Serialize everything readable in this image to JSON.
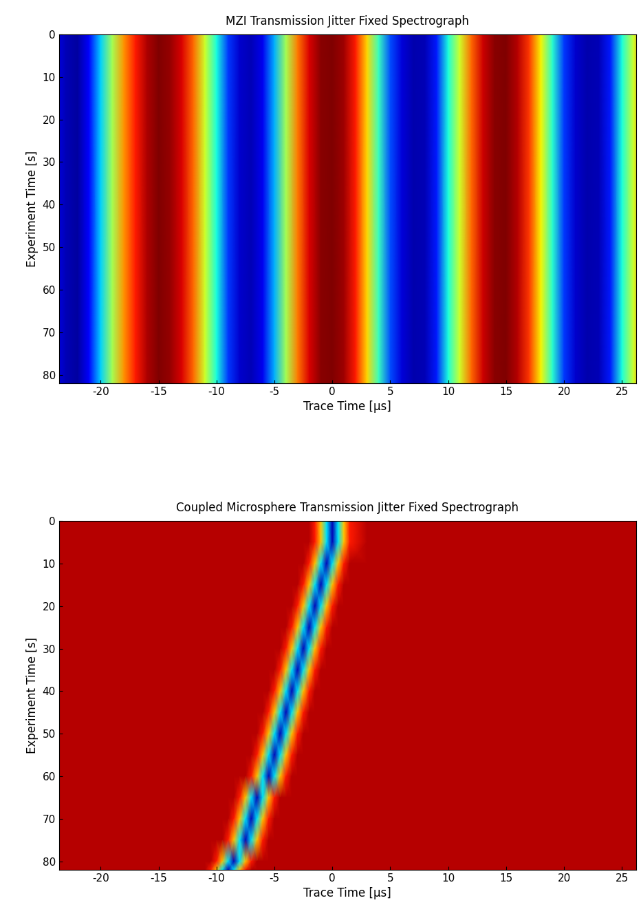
{
  "chart_data": [
    {
      "type": "heatmap",
      "title": "MZI Transmission Jitter Fixed Spectrograph",
      "x_label": "Trace Time [µs]",
      "y_label": "Experiment Time [s]",
      "xlim": [
        -23.6,
        26.2
      ],
      "ylim": [
        82,
        0
      ],
      "xticks": [
        -20,
        -15,
        -10,
        -5,
        0,
        5,
        10,
        15,
        20,
        25
      ],
      "yticks": [
        0,
        10,
        20,
        30,
        40,
        50,
        60,
        70,
        80
      ],
      "color_range": [
        0,
        1
      ],
      "x": [
        -24,
        -23,
        -22,
        -21,
        -20,
        -19,
        -18,
        -17,
        -16,
        -15,
        -14,
        -13,
        -12,
        -11,
        -10,
        -9,
        -8,
        -7,
        -6,
        -5,
        -4,
        -3,
        -2,
        -1,
        0,
        1,
        2,
        3,
        4,
        5,
        6,
        7,
        8,
        9,
        10,
        11,
        12,
        13,
        14,
        15,
        16,
        17,
        18,
        19,
        20,
        21,
        22,
        23,
        24,
        25,
        26,
        27
      ],
      "y": [
        0,
        82
      ],
      "cells": [
        [
          0.1,
          0.05,
          0.03,
          0.12,
          0.33,
          0.55,
          0.75,
          0.88,
          0.96,
          1.0,
          0.98,
          0.92,
          0.8,
          0.6,
          0.38,
          0.18,
          0.07,
          0.05,
          0.1,
          0.3,
          0.55,
          0.78,
          0.92,
          0.99,
          1.0,
          0.97,
          0.88,
          0.68,
          0.42,
          0.2,
          0.08,
          0.04,
          0.05,
          0.15,
          0.38,
          0.6,
          0.8,
          0.93,
          0.99,
          1.0,
          0.95,
          0.85,
          0.65,
          0.4,
          0.18,
          0.07,
          0.04,
          0.05,
          0.15,
          0.38,
          0.6,
          0.8
        ],
        [
          0.1,
          0.05,
          0.03,
          0.12,
          0.33,
          0.55,
          0.75,
          0.88,
          0.96,
          1.0,
          0.98,
          0.92,
          0.8,
          0.6,
          0.38,
          0.18,
          0.07,
          0.05,
          0.1,
          0.3,
          0.55,
          0.78,
          0.92,
          0.99,
          1.0,
          0.97,
          0.88,
          0.68,
          0.42,
          0.2,
          0.08,
          0.04,
          0.05,
          0.15,
          0.38,
          0.6,
          0.8,
          0.93,
          0.99,
          1.0,
          0.95,
          0.85,
          0.65,
          0.4,
          0.18,
          0.07,
          0.04,
          0.05,
          0.15,
          0.38,
          0.6,
          0.8
        ]
      ]
    },
    {
      "type": "heatmap",
      "title": "Coupled Microsphere Transmission Jitter Fixed Spectrograph",
      "x_label": "Trace Time [µs]",
      "y_label": "Experiment Time [s]",
      "xlim": [
        -23.6,
        26.2
      ],
      "ylim": [
        82,
        0
      ],
      "xticks": [
        -20,
        -15,
        -10,
        -5,
        0,
        5,
        10,
        15,
        20,
        25
      ],
      "yticks": [
        0,
        10,
        20,
        30,
        40,
        50,
        60,
        70,
        80
      ],
      "color_range": [
        0,
        1
      ],
      "x": [
        -24,
        -12,
        -11,
        -10.5,
        -10,
        -9.5,
        -9,
        -8.5,
        -8,
        -7.5,
        -7,
        -6.5,
        -6,
        -5.5,
        -5,
        -4.5,
        -4,
        -3.5,
        -3,
        -2.5,
        -2,
        -1.5,
        -1,
        -0.5,
        0,
        0.5,
        1,
        1.5,
        3,
        27
      ],
      "y": [
        0,
        5,
        10,
        15,
        20,
        25,
        30,
        35,
        40,
        45,
        50,
        55,
        60,
        65,
        70,
        75,
        80,
        82
      ],
      "cells": [
        [
          0.95,
          0.95,
          0.95,
          0.95,
          0.95,
          0.95,
          0.95,
          0.95,
          0.95,
          0.95,
          0.95,
          0.95,
          0.95,
          0.95,
          0.95,
          0.95,
          0.95,
          0.95,
          0.95,
          0.95,
          0.95,
          0.88,
          0.7,
          0.35,
          0.05,
          0.35,
          0.7,
          0.88,
          0.95,
          0.95
        ],
        [
          0.95,
          0.95,
          0.95,
          0.95,
          0.95,
          0.95,
          0.95,
          0.95,
          0.95,
          0.95,
          0.95,
          0.95,
          0.95,
          0.95,
          0.95,
          0.95,
          0.95,
          0.95,
          0.95,
          0.95,
          0.95,
          0.88,
          0.7,
          0.35,
          0.05,
          0.35,
          0.7,
          0.88,
          0.95,
          0.95
        ],
        [
          0.95,
          0.95,
          0.95,
          0.95,
          0.95,
          0.95,
          0.95,
          0.95,
          0.95,
          0.95,
          0.95,
          0.95,
          0.95,
          0.95,
          0.95,
          0.95,
          0.95,
          0.95,
          0.95,
          0.95,
          0.88,
          0.7,
          0.35,
          0.05,
          0.35,
          0.7,
          0.88,
          0.95,
          0.95,
          0.95
        ],
        [
          0.95,
          0.95,
          0.95,
          0.95,
          0.95,
          0.95,
          0.95,
          0.95,
          0.95,
          0.95,
          0.95,
          0.95,
          0.95,
          0.95,
          0.95,
          0.95,
          0.95,
          0.95,
          0.95,
          0.88,
          0.7,
          0.35,
          0.05,
          0.35,
          0.7,
          0.88,
          0.95,
          0.95,
          0.95,
          0.95
        ],
        [
          0.95,
          0.95,
          0.95,
          0.95,
          0.95,
          0.95,
          0.95,
          0.95,
          0.95,
          0.95,
          0.95,
          0.95,
          0.95,
          0.95,
          0.95,
          0.95,
          0.95,
          0.95,
          0.88,
          0.7,
          0.35,
          0.05,
          0.35,
          0.7,
          0.88,
          0.95,
          0.95,
          0.95,
          0.95,
          0.95
        ],
        [
          0.95,
          0.95,
          0.95,
          0.95,
          0.95,
          0.95,
          0.95,
          0.95,
          0.95,
          0.95,
          0.95,
          0.95,
          0.95,
          0.95,
          0.95,
          0.95,
          0.95,
          0.88,
          0.7,
          0.35,
          0.05,
          0.35,
          0.7,
          0.88,
          0.95,
          0.95,
          0.95,
          0.95,
          0.95,
          0.95
        ],
        [
          0.95,
          0.95,
          0.95,
          0.95,
          0.95,
          0.95,
          0.95,
          0.95,
          0.95,
          0.95,
          0.95,
          0.95,
          0.95,
          0.95,
          0.95,
          0.95,
          0.88,
          0.7,
          0.35,
          0.05,
          0.35,
          0.7,
          0.88,
          0.95,
          0.95,
          0.95,
          0.95,
          0.95,
          0.95,
          0.95
        ],
        [
          0.95,
          0.95,
          0.95,
          0.95,
          0.95,
          0.95,
          0.95,
          0.95,
          0.95,
          0.95,
          0.95,
          0.95,
          0.95,
          0.95,
          0.95,
          0.88,
          0.7,
          0.35,
          0.05,
          0.35,
          0.7,
          0.88,
          0.95,
          0.95,
          0.95,
          0.95,
          0.95,
          0.95,
          0.95,
          0.95
        ],
        [
          0.95,
          0.95,
          0.95,
          0.95,
          0.95,
          0.95,
          0.95,
          0.95,
          0.95,
          0.95,
          0.95,
          0.95,
          0.95,
          0.95,
          0.88,
          0.7,
          0.35,
          0.05,
          0.35,
          0.7,
          0.88,
          0.95,
          0.95,
          0.95,
          0.95,
          0.95,
          0.95,
          0.95,
          0.95,
          0.95
        ],
        [
          0.95,
          0.95,
          0.95,
          0.95,
          0.95,
          0.95,
          0.95,
          0.95,
          0.95,
          0.95,
          0.95,
          0.95,
          0.95,
          0.88,
          0.7,
          0.35,
          0.05,
          0.35,
          0.7,
          0.88,
          0.95,
          0.95,
          0.95,
          0.95,
          0.95,
          0.95,
          0.95,
          0.95,
          0.95,
          0.95
        ],
        [
          0.95,
          0.95,
          0.95,
          0.95,
          0.95,
          0.95,
          0.95,
          0.95,
          0.95,
          0.95,
          0.95,
          0.95,
          0.88,
          0.7,
          0.35,
          0.05,
          0.35,
          0.7,
          0.88,
          0.95,
          0.95,
          0.95,
          0.95,
          0.95,
          0.95,
          0.95,
          0.95,
          0.95,
          0.95,
          0.95
        ],
        [
          0.95,
          0.95,
          0.95,
          0.95,
          0.95,
          0.95,
          0.95,
          0.95,
          0.95,
          0.95,
          0.95,
          0.88,
          0.7,
          0.35,
          0.05,
          0.35,
          0.7,
          0.88,
          0.95,
          0.95,
          0.95,
          0.95,
          0.95,
          0.95,
          0.95,
          0.95,
          0.95,
          0.95,
          0.95,
          0.95
        ],
        [
          0.95,
          0.95,
          0.95,
          0.95,
          0.95,
          0.95,
          0.95,
          0.95,
          0.95,
          0.95,
          0.88,
          0.7,
          0.35,
          0.05,
          0.35,
          0.7,
          0.88,
          0.95,
          0.95,
          0.95,
          0.95,
          0.95,
          0.95,
          0.95,
          0.95,
          0.95,
          0.95,
          0.95,
          0.95,
          0.95
        ],
        [
          0.95,
          0.95,
          0.95,
          0.95,
          0.95,
          0.95,
          0.95,
          0.95,
          0.88,
          0.7,
          0.35,
          0.05,
          0.35,
          0.7,
          0.88,
          0.95,
          0.95,
          0.95,
          0.95,
          0.95,
          0.95,
          0.95,
          0.95,
          0.95,
          0.95,
          0.95,
          0.95,
          0.95,
          0.95,
          0.95
        ],
        [
          0.95,
          0.95,
          0.95,
          0.95,
          0.95,
          0.95,
          0.95,
          0.88,
          0.7,
          0.35,
          0.05,
          0.35,
          0.7,
          0.88,
          0.95,
          0.95,
          0.95,
          0.95,
          0.95,
          0.95,
          0.95,
          0.95,
          0.95,
          0.95,
          0.95,
          0.95,
          0.95,
          0.95,
          0.95,
          0.95
        ],
        [
          0.95,
          0.95,
          0.95,
          0.95,
          0.95,
          0.95,
          0.88,
          0.7,
          0.35,
          0.05,
          0.35,
          0.7,
          0.88,
          0.95,
          0.95,
          0.95,
          0.95,
          0.95,
          0.95,
          0.95,
          0.95,
          0.95,
          0.95,
          0.95,
          0.95,
          0.95,
          0.95,
          0.95,
          0.95,
          0.95
        ],
        [
          0.95,
          0.95,
          0.95,
          0.95,
          0.88,
          0.7,
          0.35,
          0.05,
          0.35,
          0.7,
          0.88,
          0.95,
          0.95,
          0.95,
          0.95,
          0.95,
          0.95,
          0.95,
          0.95,
          0.95,
          0.95,
          0.95,
          0.95,
          0.95,
          0.95,
          0.95,
          0.95,
          0.95,
          0.95,
          0.95
        ],
        [
          0.95,
          0.95,
          0.95,
          0.88,
          0.7,
          0.35,
          0.05,
          0.35,
          0.7,
          0.88,
          0.95,
          0.95,
          0.95,
          0.95,
          0.95,
          0.95,
          0.95,
          0.95,
          0.95,
          0.95,
          0.95,
          0.95,
          0.95,
          0.95,
          0.95,
          0.95,
          0.95,
          0.95,
          0.95,
          0.95
        ]
      ]
    }
  ]
}
